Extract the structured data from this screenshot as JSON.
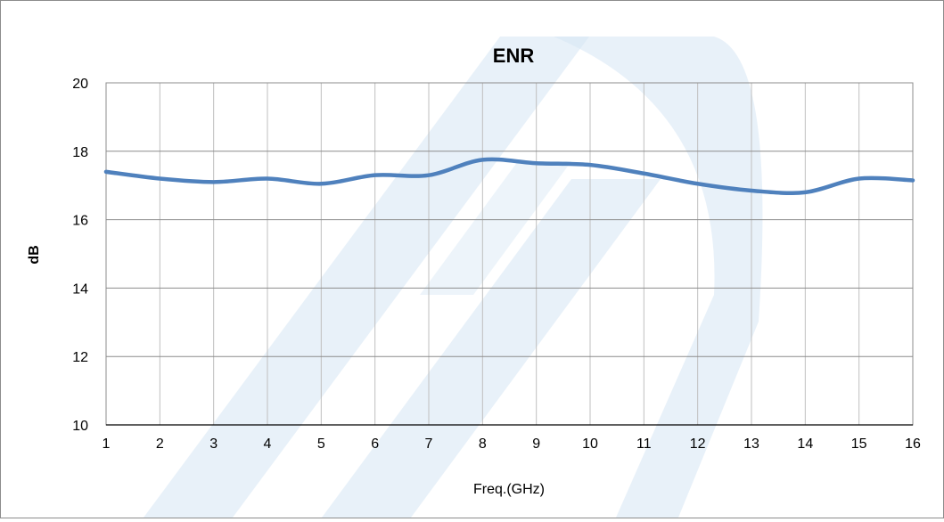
{
  "chart_data": {
    "type": "line",
    "title": "ENR",
    "xlabel": "Freq.(GHz)",
    "ylabel": "dB",
    "xlim": [
      1,
      16
    ],
    "ylim": [
      10,
      20
    ],
    "x_ticks": [
      "1",
      "2",
      "3",
      "4",
      "5",
      "6",
      "7",
      "8",
      "9",
      "10",
      "11",
      "12",
      "13",
      "14",
      "15",
      "16"
    ],
    "y_ticks": [
      "10",
      "12",
      "14",
      "16",
      "18",
      "20"
    ],
    "grid": true,
    "series": [
      {
        "color": "#4f81bd",
        "x": [
          1,
          2,
          3,
          4,
          5,
          6,
          7,
          8,
          9,
          10,
          11,
          12,
          13,
          14,
          15,
          16
        ],
        "y": [
          17.4,
          17.2,
          17.1,
          17.2,
          17.05,
          17.3,
          17.3,
          17.75,
          17.65,
          17.6,
          17.35,
          17.05,
          16.85,
          16.8,
          17.2,
          17.15
        ]
      }
    ],
    "watermark_color": "#d6e6f4"
  }
}
